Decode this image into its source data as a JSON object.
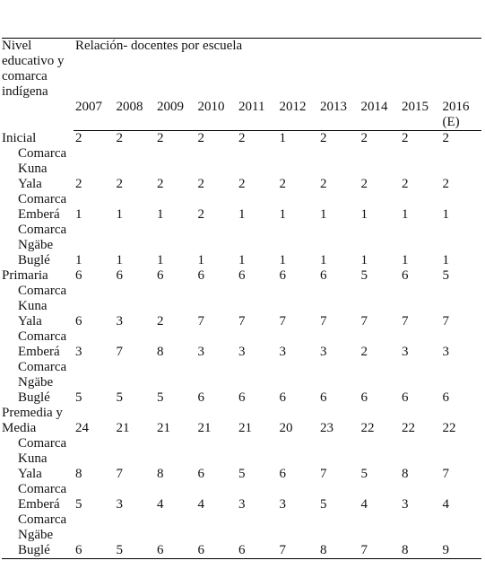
{
  "table": {
    "header": {
      "label": "Nivel educativo y comarca indígena",
      "group": "Relación- docentes por escuela",
      "years": [
        "2007",
        "2008",
        "2009",
        "2010",
        "2011",
        "2012",
        "2013",
        "2014",
        "2015",
        "2016 (E)"
      ]
    },
    "rows": [
      {
        "label": "Inicial",
        "sub": false,
        "values": [
          2,
          2,
          2,
          2,
          2,
          1,
          2,
          2,
          2,
          2
        ]
      },
      {
        "label": "Comarca Kuna Yala",
        "sub": true,
        "values": [
          2,
          2,
          2,
          2,
          2,
          2,
          2,
          2,
          2,
          2
        ]
      },
      {
        "label": "Comarca Emberá",
        "sub": true,
        "values": [
          1,
          1,
          1,
          2,
          1,
          1,
          1,
          1,
          1,
          1
        ]
      },
      {
        "label": "Comarca Ngäbe Buglé",
        "sub": true,
        "values": [
          1,
          1,
          1,
          1,
          1,
          1,
          1,
          1,
          1,
          1
        ]
      },
      {
        "label": "Primaria",
        "sub": false,
        "values": [
          6,
          6,
          6,
          6,
          6,
          6,
          6,
          5,
          6,
          5
        ]
      },
      {
        "label": "Comarca Kuna Yala",
        "sub": true,
        "values": [
          6,
          3,
          2,
          7,
          7,
          7,
          7,
          7,
          7,
          7
        ]
      },
      {
        "label": "Comarca Emberá",
        "sub": true,
        "values": [
          3,
          7,
          8,
          3,
          3,
          3,
          3,
          2,
          3,
          3
        ]
      },
      {
        "label": "Comarca Ngäbe Buglé",
        "sub": true,
        "values": [
          5,
          5,
          5,
          6,
          6,
          6,
          6,
          6,
          6,
          6
        ]
      },
      {
        "label": "Premedia y Media",
        "sub": false,
        "values": [
          24,
          21,
          21,
          21,
          21,
          20,
          23,
          22,
          22,
          22
        ]
      },
      {
        "label": "Comarca Kuna Yala",
        "sub": true,
        "values": [
          8,
          7,
          8,
          6,
          5,
          6,
          7,
          5,
          8,
          7
        ]
      },
      {
        "label": "Comarca Emberá",
        "sub": true,
        "values": [
          5,
          3,
          4,
          4,
          3,
          3,
          5,
          4,
          3,
          4
        ]
      },
      {
        "label": "Comarca Ngäbe Buglé",
        "sub": true,
        "values": [
          6,
          5,
          6,
          6,
          6,
          7,
          8,
          7,
          8,
          9
        ]
      }
    ]
  }
}
